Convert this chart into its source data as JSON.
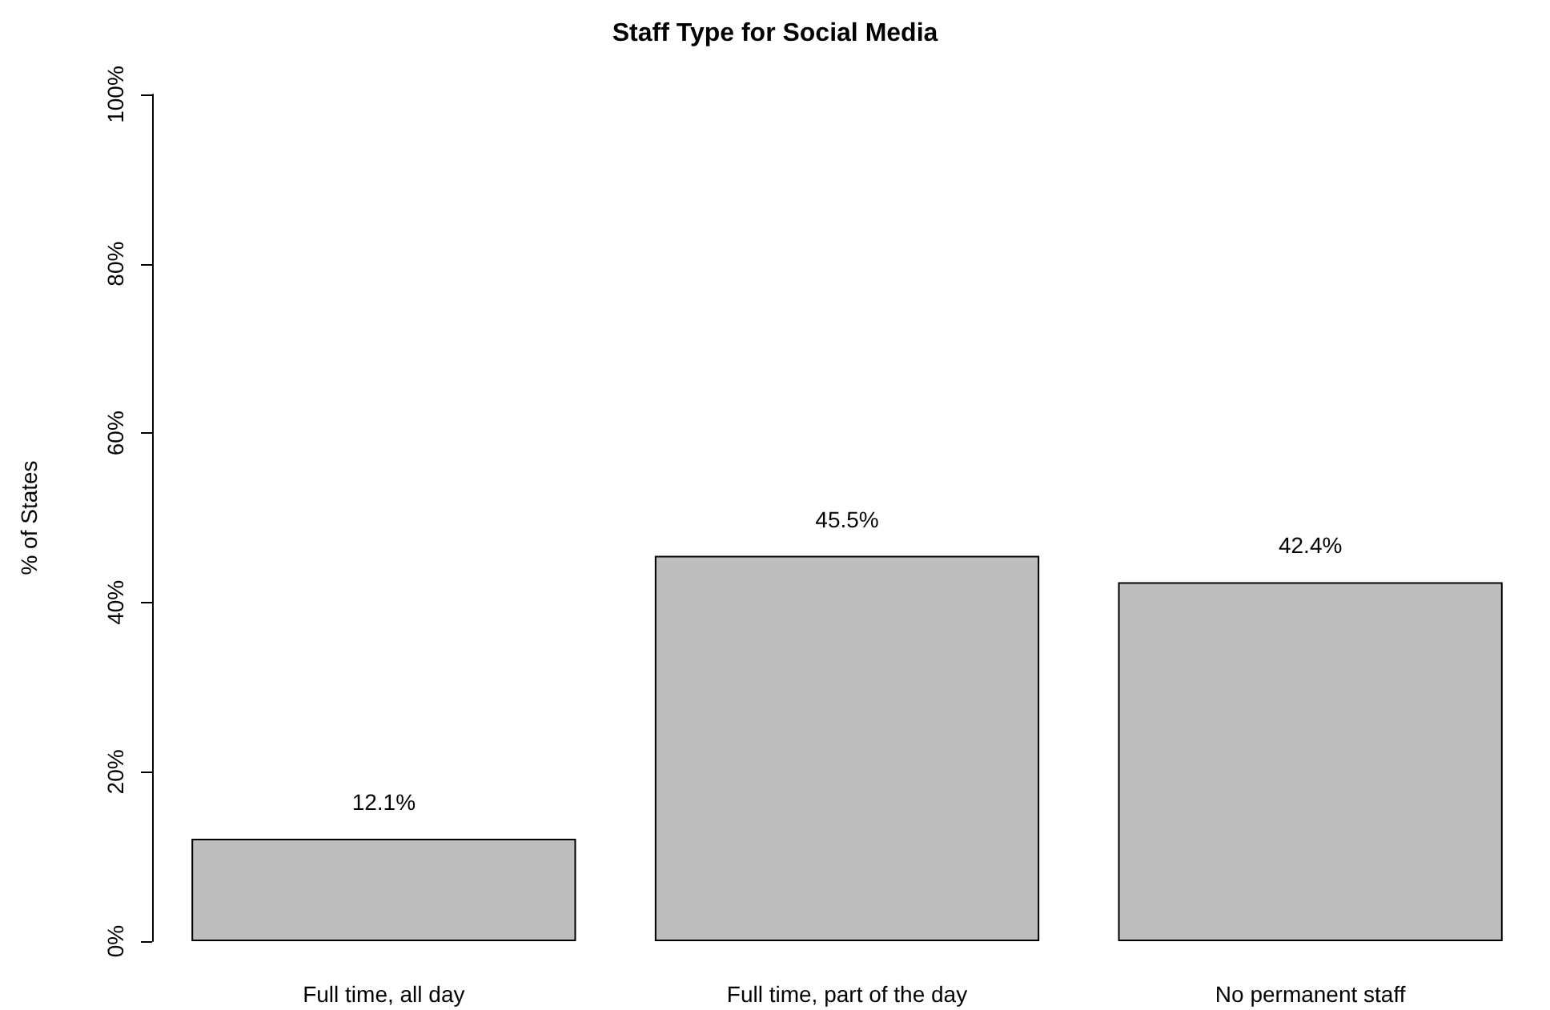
{
  "chart_data": {
    "type": "bar",
    "title": "Staff Type for Social Media",
    "ylabel": "% of States",
    "categories": [
      "Full time, all day",
      "Full time, part of the day",
      "No permanent staff"
    ],
    "values": [
      12.1,
      45.5,
      42.4
    ],
    "color": "#bebebe",
    "value_labels": [
      "12.1%",
      "45.5%",
      "42.4%"
    ],
    "ylim": [
      0,
      100
    ],
    "yticks": [
      {
        "value": 0,
        "label": "0%"
      },
      {
        "value": 20,
        "label": "20%"
      },
      {
        "value": 40,
        "label": "40%"
      },
      {
        "value": 60,
        "label": "60%"
      },
      {
        "value": 80,
        "label": "80%"
      },
      {
        "value": 100,
        "label": "100%"
      }
    ],
    "grid": false
  }
}
